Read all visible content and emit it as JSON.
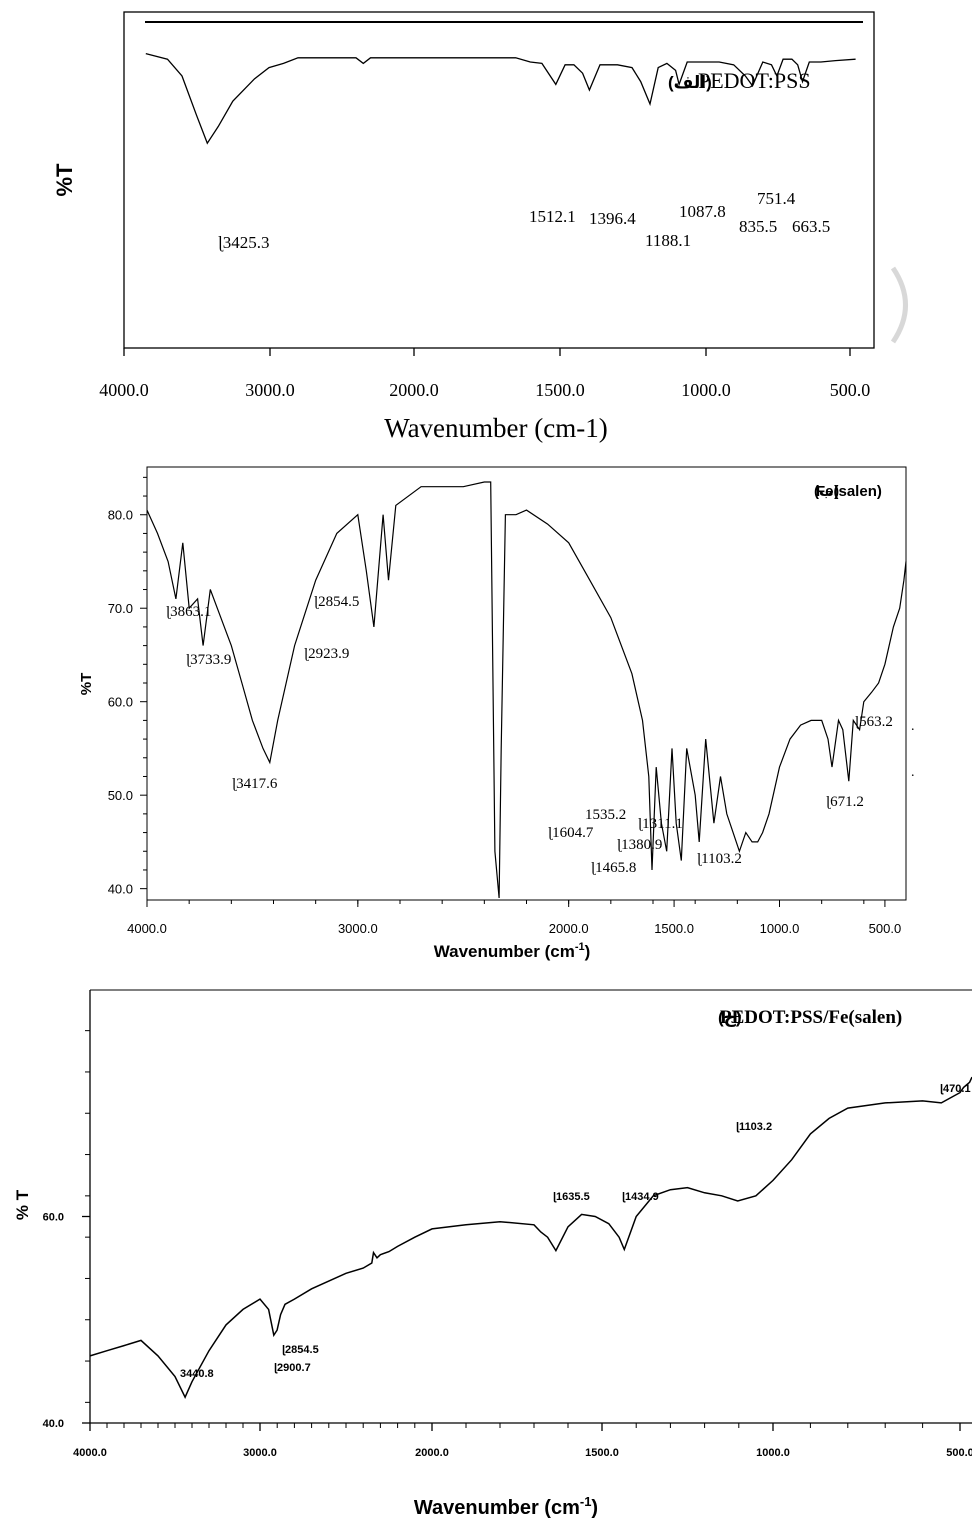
{
  "chart_data": [
    {
      "type": "line",
      "id": "pedot",
      "ylabel": "%T",
      "xlabel": "Wavenumber (cm-1)",
      "label_fa": "(الف)",
      "label_name": "PEDOT:PSS",
      "xlim": [
        4000,
        450
      ],
      "xticks": [
        "4000.0",
        "3000.0",
        "2000.0",
        "1500.0",
        "1000.0",
        "500.0"
      ],
      "x": [
        3850,
        3700,
        3600,
        3500,
        3425.3,
        3350,
        3250,
        3100,
        3000,
        2900,
        2800,
        2600,
        2400,
        2350,
        2300,
        2000,
        1800,
        1650,
        1600,
        1560,
        1512.1,
        1480,
        1450,
        1420,
        1396.4,
        1360,
        1300,
        1250,
        1220,
        1188.1,
        1160,
        1130,
        1100,
        1087.8,
        1060,
        1000,
        950,
        900,
        860,
        835.5,
        800,
        770,
        751.4,
        730,
        700,
        680,
        663.5,
        640,
        600,
        550,
        480
      ],
      "y": [
        88,
        86,
        80,
        66,
        56,
        62,
        71,
        79,
        83,
        84.5,
        86.5,
        86.5,
        86.5,
        84.5,
        86.5,
        86.5,
        86.5,
        86.5,
        85,
        84.5,
        77,
        84,
        84,
        81,
        75,
        84,
        84,
        83,
        78,
        70,
        83,
        84.5,
        82,
        77,
        85,
        85,
        85,
        84,
        80,
        76.5,
        85,
        84,
        80,
        86,
        86,
        84,
        78,
        85,
        85,
        85.5,
        86
      ],
      "peaks": [
        "3425.3",
        "1512.1",
        "1396.4",
        "1188.1",
        "1087.8",
        "835.5",
        "751.4",
        "663.5"
      ]
    },
    {
      "type": "line",
      "id": "fesalen",
      "ylabel": "%T",
      "xlabel": "Wavenumber (cm",
      "xlabel_sup": "-1",
      "xlabel_end": ")",
      "label_fa": "(ب)",
      "label_name": "Fe(salen)",
      "xlim": [
        4000,
        400
      ],
      "ylim": [
        39,
        85
      ],
      "xticks": [
        "4000.0",
        "3000.0",
        "2000.0",
        "1500.0",
        "1000.0",
        "500.0"
      ],
      "yticks": [
        "40.0",
        "50.0",
        "60.0",
        "70.0",
        "80.0"
      ],
      "x": [
        4000,
        3950,
        3900,
        3863.1,
        3830,
        3800,
        3760,
        3733.9,
        3700,
        3650,
        3600,
        3550,
        3500,
        3450,
        3417.6,
        3380,
        3300,
        3200,
        3100,
        3000,
        2960,
        2923.9,
        2880,
        2854.5,
        2820,
        2700,
        2500,
        2400,
        2370,
        2350,
        2330,
        2320,
        2300,
        2250,
        2200,
        2100,
        2000,
        1900,
        1800,
        1700,
        1650,
        1620,
        1604.7,
        1585,
        1560,
        1535.2,
        1510,
        1490,
        1465.8,
        1440,
        1400,
        1380.9,
        1350,
        1311.1,
        1280,
        1250,
        1220,
        1190,
        1160,
        1130,
        1103.2,
        1080,
        1050,
        1000,
        950,
        900,
        850,
        800,
        770,
        751,
        720,
        700,
        671.2,
        650,
        620,
        600,
        563.2,
        530,
        500,
        460,
        430,
        410,
        400
      ],
      "y": [
        80.5,
        78,
        75,
        71,
        77,
        70,
        71,
        66,
        72,
        69,
        66,
        62,
        58,
        55,
        53.5,
        58,
        66,
        73,
        78,
        80,
        74,
        68,
        80,
        73,
        81,
        83,
        83,
        83.5,
        83.5,
        44,
        39,
        55,
        80,
        80,
        80.5,
        79,
        77,
        73,
        69,
        63,
        58,
        52,
        42,
        53,
        47,
        44,
        55,
        47,
        43,
        55,
        50,
        45,
        56,
        47,
        52,
        48,
        46,
        44,
        46,
        45,
        45,
        46,
        48,
        53,
        56,
        57.5,
        58,
        58,
        56,
        53,
        58,
        57,
        51.5,
        58,
        57,
        60,
        61,
        62,
        64,
        68,
        70,
        73,
        75
      ]
    },
    {
      "type": "line",
      "id": "composite",
      "ylabel": "% T",
      "xlabel": "Wavenumber (cm",
      "xlabel_sup": "-1",
      "xlabel_end": ")",
      "label_fa": "(ج)",
      "label_name": "PEDOT:PSS/Fe(salen)",
      "xlim": [
        4000,
        400
      ],
      "ylim": [
        40,
        80
      ],
      "xticks": [
        "4000.0",
        "3000.0",
        "2000.0",
        "1500.0",
        "1000.0",
        "500.0"
      ],
      "yticks": [
        "40.0",
        "60.0"
      ],
      "x": [
        4000,
        3900,
        3800,
        3700,
        3600,
        3500,
        3440.8,
        3400,
        3300,
        3200,
        3100,
        3000,
        2950,
        2920,
        2900.7,
        2880,
        2854.5,
        2800,
        2700,
        2500,
        2400,
        2350,
        2340,
        2320,
        2300,
        2250,
        2200,
        2100,
        2000,
        1900,
        1800,
        1700,
        1680,
        1660,
        1635.5,
        1600,
        1560,
        1520,
        1480,
        1450,
        1434.9,
        1400,
        1350,
        1300,
        1250,
        1200,
        1150,
        1103.2,
        1050,
        1000,
        950,
        900,
        850,
        800,
        700,
        600,
        550,
        500,
        470,
        440,
        420,
        400
      ],
      "y": [
        46.5,
        47,
        47.5,
        48,
        46.5,
        44.5,
        42.5,
        44,
        47,
        49.5,
        51,
        52,
        51,
        48.5,
        49,
        50.5,
        51.5,
        52,
        53,
        54.5,
        55,
        55.5,
        56.5,
        56,
        56.3,
        56.6,
        57.1,
        58,
        58.8,
        59.2,
        59.5,
        59.2,
        58.5,
        58.0,
        56.7,
        59,
        60.2,
        60,
        59.3,
        58,
        56.8,
        60,
        62,
        62.6,
        62.8,
        62.3,
        62,
        61.5,
        62,
        63.5,
        65.5,
        68,
        69.5,
        70.5,
        71,
        71.2,
        71,
        72,
        72.5,
        72.8,
        73,
        73.5
      ],
      "peaks": [
        "3440.8",
        "2900.7",
        "2854.5",
        "1635.5",
        "1434.9",
        "1103.2",
        "470.1"
      ]
    }
  ]
}
